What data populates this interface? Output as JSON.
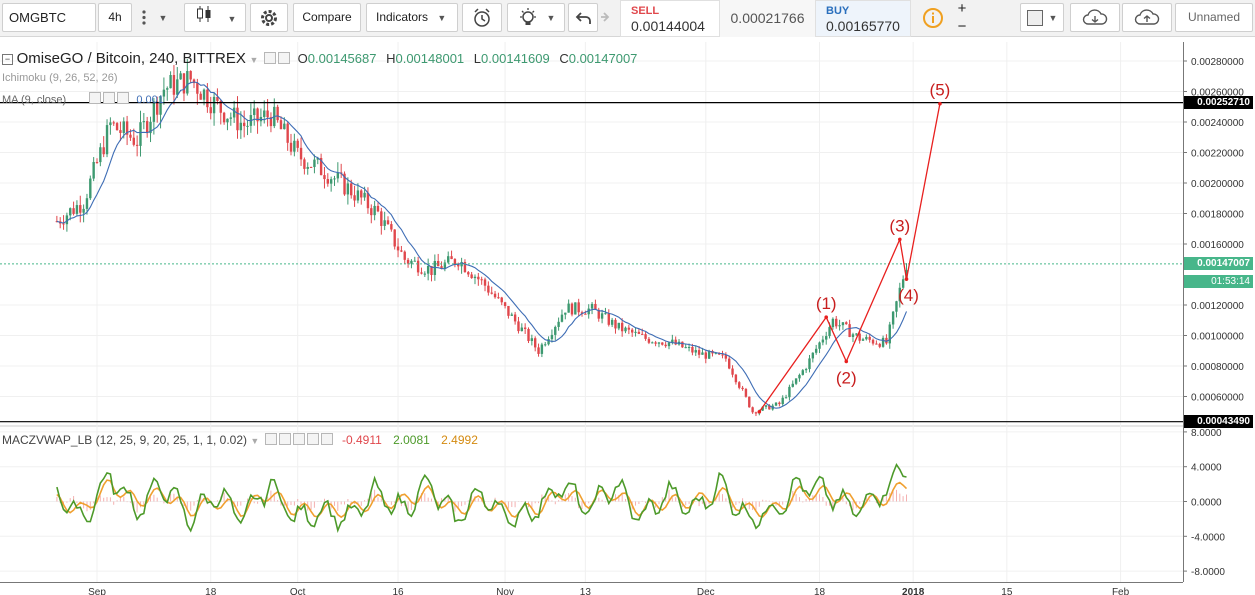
{
  "toolbar": {
    "symbol": "OMGBTC",
    "interval": "4h",
    "compare_label": "Compare",
    "indicators_label": "Indicators",
    "sell_label": "SELL",
    "sell_price": "0.00144004",
    "spread": "0.00021766",
    "buy_label": "BUY",
    "buy_price": "0.00165770",
    "layout_name": "Unnamed",
    "icons": [
      "more-vert-icon",
      "candles-icon",
      "gear-icon",
      "alert-clock-icon",
      "bulb-icon",
      "undo-icon",
      "redo-icon",
      "info-icon",
      "plus-icon",
      "minus-icon",
      "square-icon",
      "cloud-download-icon",
      "cloud-upload-icon"
    ]
  },
  "legend": {
    "title": "OmiseGO / Bitcoin, 240, BITTREX",
    "o_label": "O",
    "open": "0.00145687",
    "h_label": "H",
    "high": "0.00148001",
    "l_label": "L",
    "low": "0.00141609",
    "c_label": "C",
    "close": "0.00147007",
    "ichimoku": "Ichimoku (9, 26, 52, 26)",
    "ma": "MA (9, close)",
    "ma_value": "0.001"
  },
  "oscillator": {
    "title": "MACZVWAP_LB (12, 25, 9, 20, 25, 1, 1, 0.02)",
    "v1": "-0.4911",
    "v2": "2.0081",
    "v3": "2.4992"
  },
  "colors": {
    "up": "#3d9970",
    "down": "#e0474c",
    "ma": "#3e6db5",
    "wave": "#e8201f",
    "osc_green": "#4d9a2a",
    "osc_orange": "#f0a030",
    "osc_hist": "#f4b0b0",
    "last_price_bg": "#47b68a",
    "level_bg": "#000000"
  },
  "chart_data": [
    {
      "type": "line",
      "title": "OmiseGO / Bitcoin, 240, BITTREX",
      "x_ticks": [
        "Sep",
        "18",
        "Oct",
        "16",
        "Nov",
        "13",
        "Dec",
        "18",
        "2018",
        "15",
        "Feb"
      ],
      "y_ticks": [
        "0.00280000",
        "0.00260000",
        "0.00240000",
        "0.00220000",
        "0.00200000",
        "0.00180000",
        "0.00160000",
        "0.00120000",
        "0.00100000",
        "0.00080000",
        "0.00060000"
      ],
      "ylim": [
        0.00042,
        0.0029
      ],
      "x": [
        "Aug 26",
        "Aug 30",
        "Sep 3",
        "Sep 7",
        "Sep 11",
        "Sep 15",
        "Sep 19",
        "Sep 23",
        "Sep 27",
        "Oct 1",
        "Oct 5",
        "Oct 9",
        "Oct 13",
        "Oct 17",
        "Oct 21",
        "Oct 25",
        "Oct 29",
        "Nov 2",
        "Nov 6",
        "Nov 10",
        "Nov 14",
        "Nov 18",
        "Nov 22",
        "Nov 26",
        "Nov 30",
        "Dec 4",
        "Dec 8",
        "Dec 12",
        "Dec 16",
        "Dec 20",
        "Dec 24",
        "Dec 28",
        "Dec 31"
      ],
      "series": [
        {
          "values": [
            0.00175,
            0.00188,
            0.00238,
            0.00228,
            0.00262,
            0.00268,
            0.0025,
            0.00238,
            0.00245,
            0.00218,
            0.00208,
            0.00195,
            0.0018,
            0.0015,
            0.00143,
            0.0015,
            0.00133,
            0.00112,
            0.0009,
            0.00118,
            0.00117,
            0.00105,
            0.00098,
            0.00095,
            0.00088,
            0.00085,
            0.0005,
            0.00055,
            0.0008,
            0.0011,
            0.00098,
            0.00095,
            0.00147
          ]
        }
      ],
      "last_price": "0.00147007",
      "countdown": "01:53:14",
      "levels": [
        {
          "label": "0.00252710",
          "value": 0.0025271
        },
        {
          "label": "0.00043490",
          "value": 0.0004349
        }
      ],
      "waves": [
        {
          "label": "",
          "x": "Dec 9",
          "y": 0.0005
        },
        {
          "label": "(1)",
          "x": "Dec 19",
          "y": 0.00112
        },
        {
          "label": "(2)",
          "x": "Dec 22",
          "y": 0.00083
        },
        {
          "label": "(3)",
          "x": "Dec 30",
          "y": 0.00163
        },
        {
          "label": "(4)",
          "x": "Dec 31",
          "y": 0.00137
        },
        {
          "label": "(5)",
          "x": "Jan 5",
          "y": 0.00252
        }
      ]
    },
    {
      "type": "line",
      "title": "MACZVWAP_LB (12, 25, 9, 20, 25, 1, 1, 0.02)",
      "y_ticks": [
        "8.0000",
        "4.0000",
        "0.0000",
        "-4.0000",
        "-8.0000"
      ],
      "ylim": [
        -9,
        9
      ],
      "series": [
        {
          "name": "",
          "values": [
            1,
            -2,
            3,
            -1,
            2,
            -2,
            1,
            -2,
            2,
            -2,
            -1,
            -2,
            1,
            -1,
            2,
            -2,
            1,
            -2,
            -1,
            2,
            -1,
            2,
            -2,
            1,
            -1,
            2,
            -2,
            -1,
            2,
            1,
            -1,
            1,
            4
          ]
        },
        {
          "name": "",
          "values": [
            0,
            -1,
            2,
            0,
            1,
            -1,
            0,
            -1,
            1,
            -1,
            -1,
            -1,
            0,
            0,
            1,
            -1,
            0,
            -1,
            -1,
            1,
            0,
            1,
            -1,
            0,
            0,
            1,
            -1,
            -1,
            1,
            1,
            0,
            0,
            2
          ]
        }
      ]
    }
  ]
}
